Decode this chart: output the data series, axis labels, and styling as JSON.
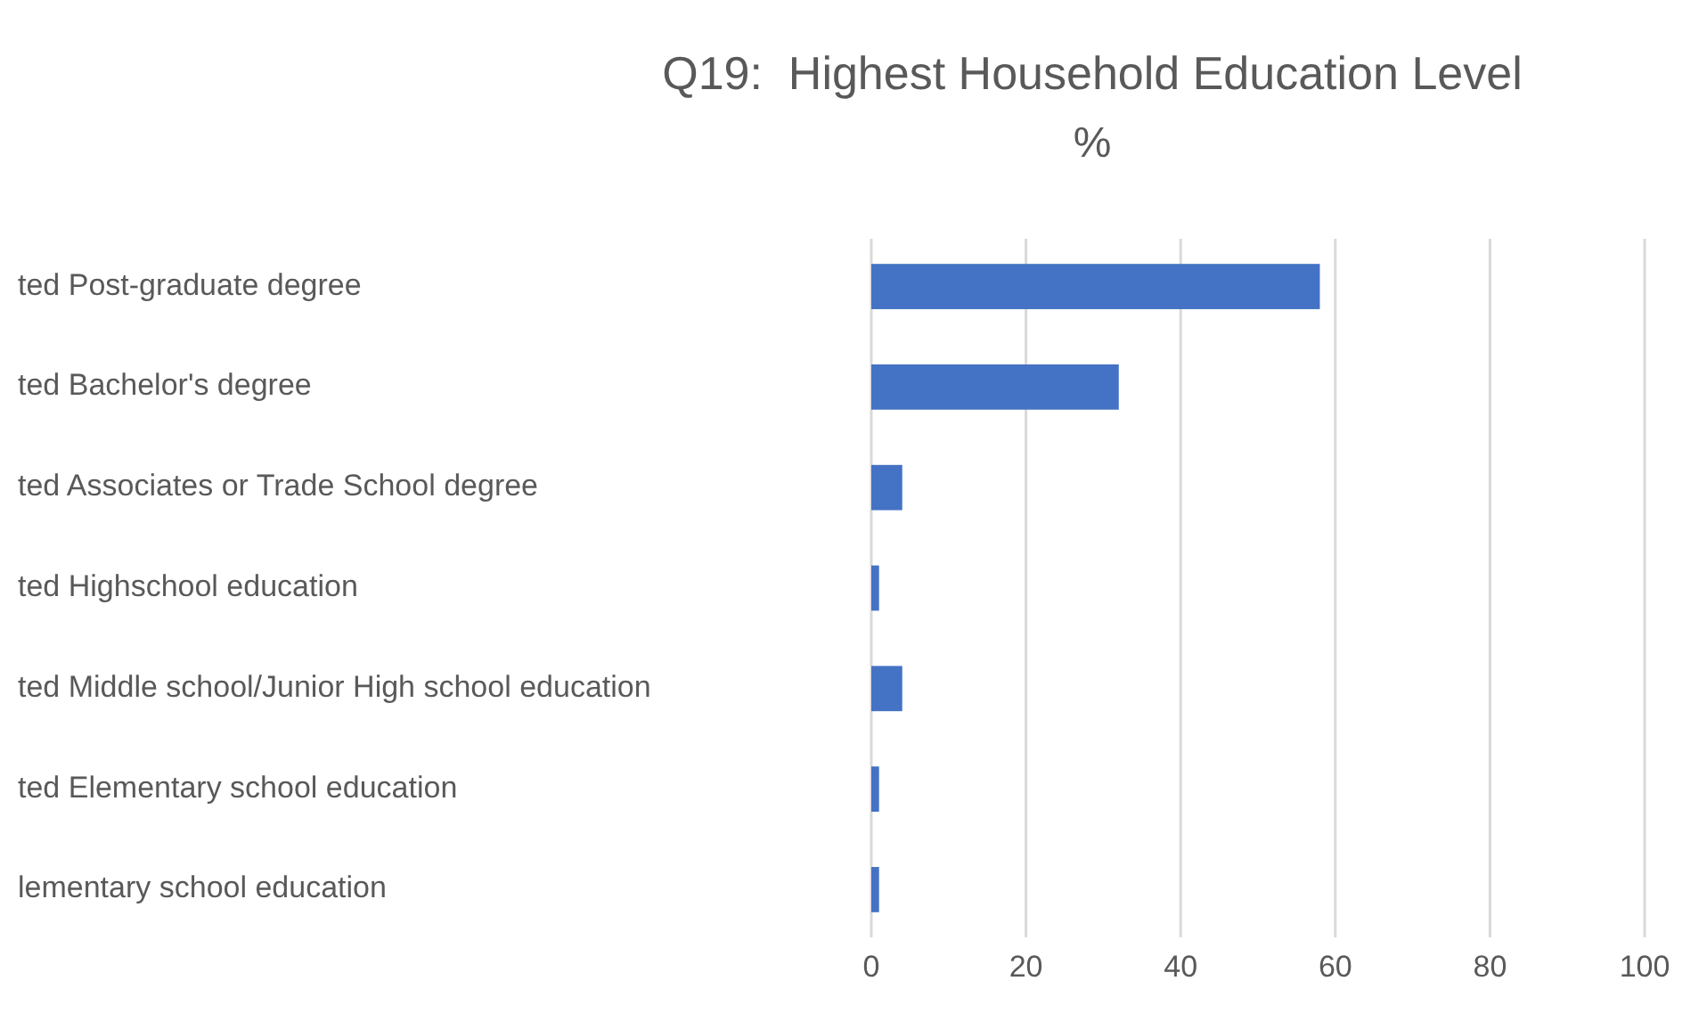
{
  "chart_data": {
    "type": "bar",
    "orientation": "horizontal",
    "title": "Q19:  Highest Household Education Level",
    "subtitle": "%",
    "categories": [
      "ted Post-graduate degree",
      "ted Bachelor's degree",
      "ted Associates or Trade School degree",
      "ted Highschool education",
      "ted Middle school/Junior High school education",
      "ted Elementary school education",
      "lementary school education"
    ],
    "values": [
      58,
      32,
      4,
      1,
      4,
      1,
      1
    ],
    "color": "#4472c4",
    "xlim": [
      0,
      100
    ],
    "xticks": [
      0,
      20,
      40,
      60,
      80,
      100
    ],
    "grid": "x"
  }
}
